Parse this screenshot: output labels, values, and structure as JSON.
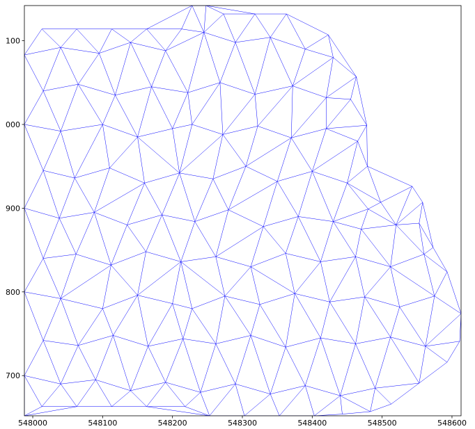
{
  "chart_data": {
    "type": "triplot",
    "color": "#0000ff",
    "x": [
      547988,
      548013,
      548063,
      548113,
      548163,
      548218,
      548253,
      548303,
      548353,
      548403,
      548443,
      548483,
      548513,
      548553,
      548593,
      548611,
      548613,
      548593,
      548573,
      548553,
      548558,
      548543,
      548498,
      548480,
      548479,
      548478,
      548463,
      548423,
      548363,
      548318,
      548273,
      548248,
      548228,
      548213,
      548163,
      548113,
      548063,
      548013,
      547988,
      547988,
      547988,
      547988,
      547988,
      548040,
      548095,
      548140,
      548190,
      548245,
      548290,
      548340,
      548390,
      548430,
      548015,
      548065,
      548118,
      548170,
      548222,
      548268,
      548318,
      548372,
      548420,
      548455,
      548040,
      548100,
      548150,
      548200,
      548228,
      548272,
      548322,
      548370,
      548420,
      548465,
      548015,
      548060,
      548110,
      548160,
      548210,
      548258,
      548305,
      548350,
      548400,
      548450,
      548038,
      548088,
      548135,
      548185,
      548232,
      548280,
      548330,
      548380,
      548430,
      548470,
      548520,
      548015,
      548062,
      548112,
      548162,
      548212,
      548262,
      548312,
      548362,
      548412,
      548462,
      548512,
      548560,
      548040,
      548100,
      548150,
      548200,
      548228,
      548275,
      548325,
      548375,
      548425,
      548475,
      548525,
      548575,
      548015,
      548065,
      548115,
      548165,
      548215,
      548262,
      548312,
      548362,
      548412,
      548462,
      548512,
      548562,
      548040,
      548090,
      548140,
      548190,
      548240,
      548290,
      548340,
      548390,
      548440,
      548490
    ],
    "y": [
      652,
      663,
      663,
      663,
      663,
      663,
      652,
      652,
      652,
      652,
      654,
      657,
      666,
      691,
      716,
      741,
      774,
      824,
      853,
      882,
      907,
      926,
      907,
      899,
      950,
      999,
      1057,
      1107,
      1132,
      1132,
      1132,
      1142,
      1142,
      1114,
      1114,
      1114,
      1114,
      1114,
      1083,
      1000,
      900,
      800,
      700,
      1092,
      1085,
      1098,
      1088,
      1110,
      1098,
      1104,
      1090,
      1080,
      1040,
      1048,
      1035,
      1045,
      1038,
      1050,
      1036,
      1046,
      1032,
      1030,
      992,
      1000,
      985,
      995,
      1000,
      988,
      998,
      984,
      995,
      980,
      945,
      936,
      948,
      930,
      942,
      935,
      950,
      932,
      944,
      930,
      888,
      895,
      880,
      892,
      884,
      898,
      878,
      890,
      884,
      875,
      880,
      840,
      845,
      832,
      848,
      836,
      842,
      830,
      846,
      836,
      842,
      830,
      845,
      792,
      780,
      796,
      786,
      780,
      795,
      785,
      798,
      788,
      794,
      782,
      795,
      742,
      736,
      748,
      735,
      744,
      738,
      748,
      734,
      745,
      738,
      746,
      735,
      690,
      695,
      682,
      692,
      680,
      690,
      678,
      688,
      676,
      685
    ],
    "xlim": [
      547988,
      548613
    ],
    "ylim": [
      652,
      1142
    ],
    "xticks": [
      548000,
      548100,
      548200,
      548300,
      548400,
      548500,
      548600
    ],
    "yticks": [
      {
        "value": 1100,
        "label": "100"
      },
      {
        "value": 1000,
        "label": "000"
      },
      900,
      800,
      700
    ]
  }
}
